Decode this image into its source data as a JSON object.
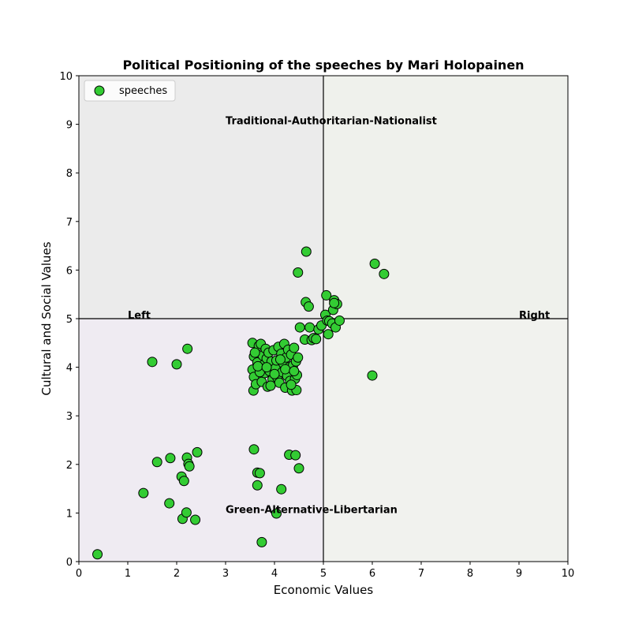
{
  "chart_data": {
    "type": "scatter",
    "title": "Political Positioning of the speeches by Mari Holopainen",
    "xlabel": "Economic Values",
    "ylabel": "Cultural and Social Values",
    "xlim": [
      0,
      10
    ],
    "ylim": [
      0,
      10
    ],
    "xticks": [
      "0",
      "1",
      "2",
      "3",
      "4",
      "5",
      "6",
      "7",
      "8",
      "9",
      "10"
    ],
    "yticks": [
      "0",
      "1",
      "2",
      "3",
      "4",
      "5",
      "6",
      "7",
      "8",
      "9",
      "10"
    ],
    "grid": false,
    "legend": {
      "placement": "top-left",
      "entries": [
        "speeches"
      ]
    },
    "marker_color": "#33cc33",
    "marker_edge": "#000000",
    "quadrants": {
      "top_left_color": "#ebebeb",
      "top_right_color": "#eff1ec",
      "bottom_left_color": "#efebf2",
      "bottom_right_color": "#f1f2ee",
      "divider_x": 5,
      "divider_y": 5
    },
    "annotations": [
      {
        "text": "Traditional-Authoritarian-Nationalist",
        "x": 3.0,
        "y": 9.0
      },
      {
        "text": "Green-Alternative-Libertarian",
        "x": 3.0,
        "y": 1.0
      },
      {
        "text": "Left",
        "x": 1.0,
        "y": 5.0
      },
      {
        "text": "Right",
        "x": 9.0,
        "y": 5.0
      }
    ],
    "series": [
      {
        "name": "speeches",
        "points": [
          [
            0.38,
            0.15
          ],
          [
            1.32,
            1.41
          ],
          [
            1.5,
            4.11
          ],
          [
            1.6,
            2.05
          ],
          [
            1.85,
            1.2
          ],
          [
            1.87,
            2.13
          ],
          [
            2.0,
            4.06
          ],
          [
            2.1,
            1.75
          ],
          [
            2.12,
            0.88
          ],
          [
            2.15,
            1.66
          ],
          [
            2.2,
            1.01
          ],
          [
            2.21,
            2.14
          ],
          [
            2.22,
            4.38
          ],
          [
            2.24,
            2.01
          ],
          [
            2.26,
            1.96
          ],
          [
            2.38,
            0.86
          ],
          [
            2.42,
            2.25
          ],
          [
            3.58,
            2.31
          ],
          [
            3.65,
            1.83
          ],
          [
            3.65,
            1.57
          ],
          [
            3.7,
            1.82
          ],
          [
            3.74,
            0.4
          ],
          [
            4.04,
            0.99
          ],
          [
            4.14,
            1.49
          ],
          [
            4.3,
            2.2
          ],
          [
            4.43,
            2.19
          ],
          [
            4.5,
            1.92
          ],
          [
            3.55,
            4.5
          ],
          [
            3.58,
            4.22
          ],
          [
            3.55,
            3.95
          ],
          [
            3.58,
            3.8
          ],
          [
            3.57,
            3.52
          ],
          [
            3.62,
            3.65
          ],
          [
            3.65,
            4.1
          ],
          [
            3.68,
            4.44
          ],
          [
            3.72,
            4.48
          ],
          [
            3.74,
            3.7
          ],
          [
            3.76,
            4.24
          ],
          [
            3.78,
            4.05
          ],
          [
            3.8,
            3.88
          ],
          [
            3.82,
            4.38
          ],
          [
            3.84,
            4.18
          ],
          [
            3.86,
            3.6
          ],
          [
            3.88,
            4.3
          ],
          [
            3.9,
            3.92
          ],
          [
            3.94,
            4.12
          ],
          [
            3.96,
            3.75
          ],
          [
            3.98,
            4.35
          ],
          [
            4.02,
            3.98
          ],
          [
            4.04,
            4.14
          ],
          [
            4.06,
            3.78
          ],
          [
            4.08,
            4.42
          ],
          [
            4.1,
            3.68
          ],
          [
            4.14,
            4.28
          ],
          [
            4.16,
            3.9
          ],
          [
            4.18,
            4.08
          ],
          [
            4.2,
            4.48
          ],
          [
            4.22,
            3.58
          ],
          [
            4.24,
            4.2
          ],
          [
            4.26,
            3.82
          ],
          [
            4.28,
            4.36
          ],
          [
            4.3,
            4.0
          ],
          [
            4.32,
            3.72
          ],
          [
            4.34,
            4.26
          ],
          [
            4.36,
            3.52
          ],
          [
            4.38,
            4.04
          ],
          [
            4.4,
            4.4
          ],
          [
            4.42,
            3.76
          ],
          [
            4.44,
            4.12
          ],
          [
            4.45,
            3.53
          ],
          [
            4.46,
            3.84
          ],
          [
            4.48,
            4.2
          ],
          [
            3.6,
            4.3
          ],
          [
            3.7,
            3.9
          ],
          [
            3.92,
            3.62
          ],
          [
            4.12,
            4.16
          ],
          [
            4.34,
            3.64
          ],
          [
            3.66,
            4.02
          ],
          [
            3.84,
            4.0
          ],
          [
            4.0,
            3.86
          ],
          [
            4.22,
            3.96
          ],
          [
            4.4,
            3.92
          ],
          [
            4.48,
            5.95
          ],
          [
            4.52,
            4.82
          ],
          [
            4.62,
            4.57
          ],
          [
            4.64,
            5.34
          ],
          [
            4.65,
            6.38
          ],
          [
            4.7,
            5.25
          ],
          [
            4.72,
            4.82
          ],
          [
            4.76,
            4.56
          ],
          [
            4.8,
            4.6
          ],
          [
            4.85,
            4.58
          ],
          [
            4.9,
            4.78
          ],
          [
            4.96,
            4.86
          ],
          [
            5.04,
            5.08
          ],
          [
            5.06,
            5.48
          ],
          [
            5.08,
            4.96
          ],
          [
            5.1,
            4.68
          ],
          [
            5.12,
            4.95
          ],
          [
            5.18,
            4.9
          ],
          [
            5.2,
            5.18
          ],
          [
            5.22,
            5.38
          ],
          [
            5.25,
            4.82
          ],
          [
            5.28,
            5.3
          ],
          [
            5.33,
            4.96
          ],
          [
            5.22,
            5.32
          ],
          [
            6.0,
            3.83
          ],
          [
            6.05,
            6.13
          ],
          [
            6.24,
            5.92
          ]
        ]
      }
    ]
  }
}
